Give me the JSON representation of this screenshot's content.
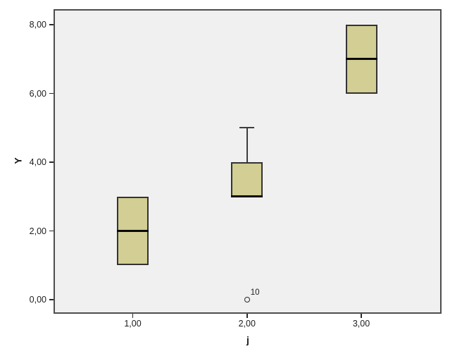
{
  "figure": {
    "background": "#ffffff",
    "plot_background": "#f0f0f0",
    "plot_border_color": "#4d4d4d",
    "box_fill": "#d2ce94",
    "box_border_color": "#333333",
    "whisker_color": "#3d3d3d",
    "text_color": "#1c1c1c",
    "tick_color": "#2a2a2a"
  },
  "chart_data": {
    "type": "boxplot",
    "title": "",
    "xlabel": "j",
    "ylabel": "Y",
    "ylim": [
      -0.45,
      8.45
    ],
    "grid": false,
    "legend": "none",
    "decimal_separator": ",",
    "y_ticks": [
      {
        "value": 0,
        "label": "0,00"
      },
      {
        "value": 2,
        "label": "2,00"
      },
      {
        "value": 4,
        "label": "4,00"
      },
      {
        "value": 6,
        "label": "6,00"
      },
      {
        "value": 8,
        "label": "8,00"
      }
    ],
    "x_ticks": [
      {
        "value": 1,
        "label": "1,00"
      },
      {
        "value": 2,
        "label": "2,00"
      },
      {
        "value": 3,
        "label": "3,00"
      }
    ],
    "boxes": [
      {
        "x": 1,
        "category": "1,00",
        "whisker_low": 1.0,
        "q1": 1.0,
        "median": 2.0,
        "q3": 3.0,
        "whisker_high": 3.0,
        "outliers": []
      },
      {
        "x": 2,
        "category": "2,00",
        "whisker_low": 3.0,
        "q1": 3.0,
        "median": 3.0,
        "q3": 4.0,
        "whisker_high": 5.0,
        "outliers": [
          {
            "value": 0.0,
            "label": "10"
          }
        ]
      },
      {
        "x": 3,
        "category": "3,00",
        "whisker_low": 6.0,
        "q1": 6.0,
        "median": 7.0,
        "q3": 8.0,
        "whisker_high": 8.0,
        "outliers": []
      }
    ]
  }
}
